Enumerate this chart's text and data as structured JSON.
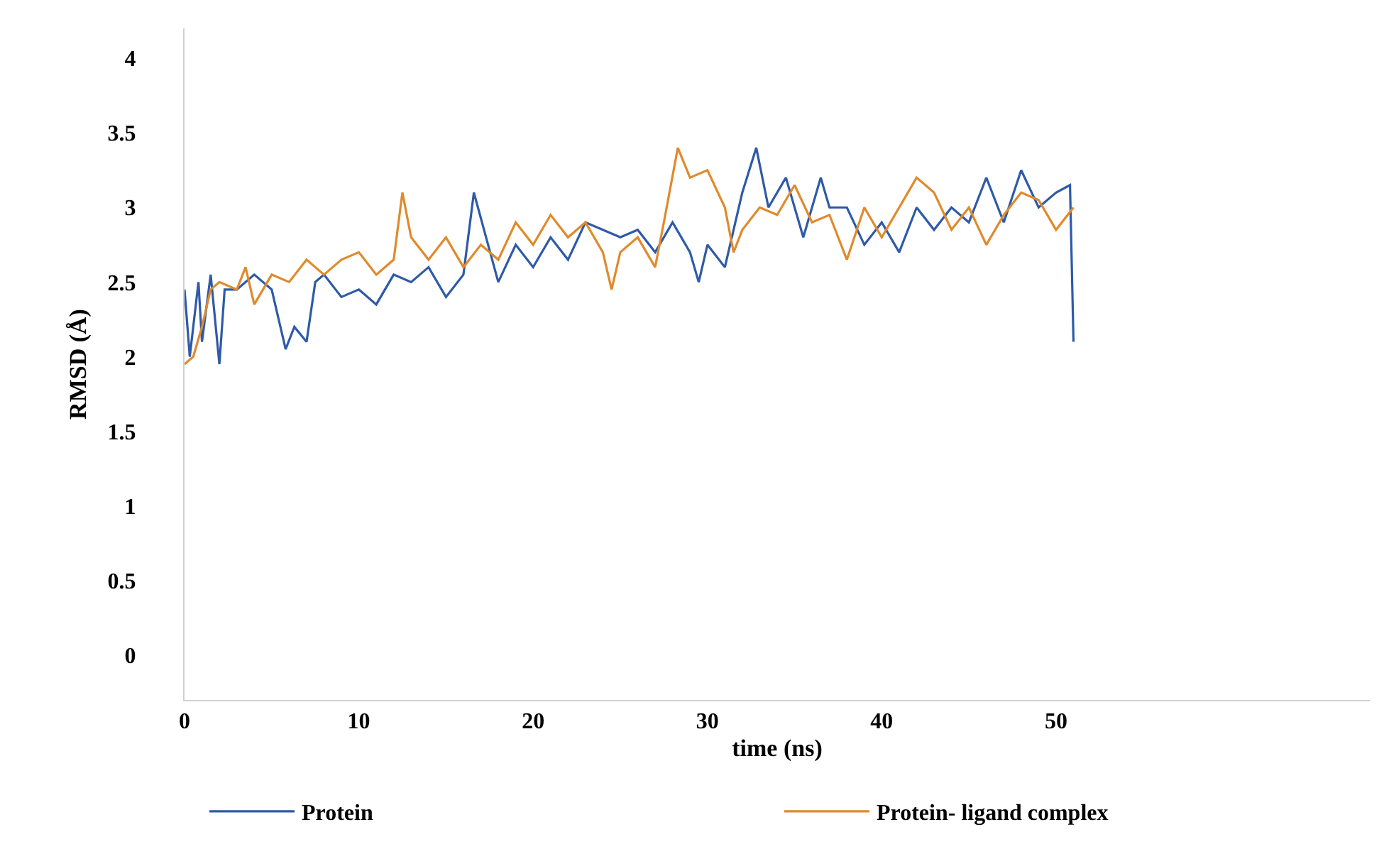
{
  "chart_data": {
    "type": "line",
    "xlabel": "time (ns)",
    "ylabel": "RMSD (Å)",
    "xlim": [
      0,
      68
    ],
    "xticks": [
      0,
      10,
      20,
      30,
      40,
      50
    ],
    "ylim": [
      -0.3,
      4.2
    ],
    "yticks": [
      0,
      0.5,
      1,
      1.5,
      2,
      2.5,
      3,
      3.5,
      4
    ],
    "grid": false,
    "legend": "bottom",
    "marker": "none",
    "line_style": "solid",
    "series": [
      {
        "name": "Protein",
        "color": "#2e5aa8",
        "x": [
          0,
          0.3,
          0.8,
          1.0,
          1.5,
          2,
          2.3,
          3,
          4,
          5,
          5.8,
          6.3,
          7,
          7.5,
          8,
          9,
          10,
          11,
          12,
          13,
          14,
          15,
          16,
          16.6,
          17.3,
          18,
          19,
          20,
          21,
          22,
          23,
          24,
          25,
          26,
          27,
          28,
          29,
          29.5,
          30,
          31,
          32,
          32.8,
          33.5,
          34.5,
          35.5,
          36.5,
          37,
          38,
          39,
          40,
          41,
          42,
          43,
          44,
          45,
          46,
          47,
          48,
          49,
          50,
          50.8,
          51
        ],
        "values": [
          2.45,
          2.0,
          2.5,
          2.1,
          2.55,
          1.95,
          2.45,
          2.45,
          2.55,
          2.45,
          2.05,
          2.2,
          2.1,
          2.5,
          2.55,
          2.4,
          2.45,
          2.35,
          2.55,
          2.5,
          2.6,
          2.4,
          2.55,
          3.1,
          2.8,
          2.5,
          2.75,
          2.6,
          2.8,
          2.65,
          2.9,
          2.85,
          2.8,
          2.85,
          2.7,
          2.9,
          2.7,
          2.5,
          2.75,
          2.6,
          3.1,
          3.4,
          3.0,
          3.2,
          2.8,
          3.2,
          3.0,
          3.0,
          2.75,
          2.9,
          2.7,
          3.0,
          2.85,
          3.0,
          2.9,
          3.2,
          2.9,
          3.25,
          3.0,
          3.1,
          3.15,
          2.1
        ]
      },
      {
        "name": "Protein- ligand complex",
        "color": "#e08a2c",
        "x": [
          0,
          0.5,
          1.0,
          1.5,
          2,
          3,
          3.5,
          4,
          5,
          6,
          7,
          8,
          9,
          10,
          11,
          12,
          12.5,
          13,
          14,
          15,
          16,
          17,
          18,
          19,
          20,
          21,
          22,
          23,
          24,
          24.5,
          25,
          26,
          27,
          27.5,
          28.3,
          29,
          30,
          31,
          31.5,
          32,
          33,
          34,
          35,
          36,
          37,
          38,
          39,
          40,
          41,
          42,
          43,
          44,
          45,
          46,
          47,
          48,
          49,
          50,
          51
        ],
        "values": [
          1.95,
          2.0,
          2.2,
          2.45,
          2.5,
          2.45,
          2.6,
          2.35,
          2.55,
          2.5,
          2.65,
          2.55,
          2.65,
          2.7,
          2.55,
          2.65,
          3.1,
          2.8,
          2.65,
          2.8,
          2.6,
          2.75,
          2.65,
          2.9,
          2.75,
          2.95,
          2.8,
          2.9,
          2.7,
          2.45,
          2.7,
          2.8,
          2.6,
          2.9,
          3.4,
          3.2,
          3.25,
          3.0,
          2.7,
          2.85,
          3.0,
          2.95,
          3.15,
          2.9,
          2.95,
          2.65,
          3.0,
          2.8,
          3.0,
          3.2,
          3.1,
          2.85,
          3.0,
          2.75,
          2.95,
          3.1,
          3.05,
          2.85,
          3.0
        ]
      }
    ]
  }
}
